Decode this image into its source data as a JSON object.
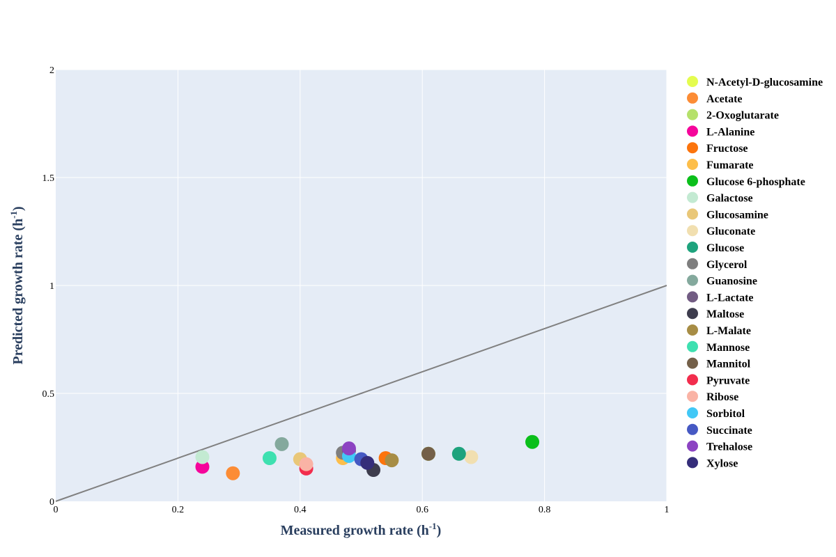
{
  "chart_data": {
    "type": "scatter",
    "xlabel": "Measured growth rate (h",
    "xlabel_sup": "-1",
    "xlabel_end": ")",
    "ylabel": "Predicted growth rate (h",
    "ylabel_sup": "-1",
    "ylabel_end": ")",
    "xlim": [
      0,
      1
    ],
    "ylim": [
      0,
      2
    ],
    "xticks": [
      0,
      0.2,
      0.4,
      0.6,
      0.8,
      1
    ],
    "yticks": [
      0,
      0.5,
      1,
      1.5,
      2
    ],
    "grid": true,
    "legend_position": "right",
    "reference_line": {
      "x": [
        0,
        1
      ],
      "y": [
        0,
        1
      ],
      "color": "#808080"
    },
    "series": [
      {
        "name": "N-Acetyl-D-glucosamine",
        "color": "#e4fc4f",
        "x": 0.61,
        "y": 0.22
      },
      {
        "name": "Acetate",
        "color": "#fc8c35",
        "x": 0.29,
        "y": 0.13
      },
      {
        "name": "2-Oxoglutarate",
        "color": "#b5e16b",
        "x": 0.61,
        "y": 0.22
      },
      {
        "name": "L-Alanine",
        "color": "#f5059b",
        "x": 0.24,
        "y": 0.16
      },
      {
        "name": "Fructose",
        "color": "#fc740c",
        "x": 0.54,
        "y": 0.2
      },
      {
        "name": "Fumarate",
        "color": "#fdbe4a",
        "x": 0.47,
        "y": 0.2
      },
      {
        "name": "Glucose 6-phosphate",
        "color": "#0bbf1b",
        "x": 0.78,
        "y": 0.275
      },
      {
        "name": "Galactose",
        "color": "#c3ead2",
        "x": 0.24,
        "y": 0.205
      },
      {
        "name": "Glucosamine",
        "color": "#e9c778",
        "x": 0.4,
        "y": 0.195
      },
      {
        "name": "Gluconate",
        "color": "#f1dfb0",
        "x": 0.68,
        "y": 0.205
      },
      {
        "name": "Glucose",
        "color": "#1ea37d",
        "x": 0.66,
        "y": 0.22
      },
      {
        "name": "Glycerol",
        "color": "#7e7e7e",
        "x": 0.47,
        "y": 0.225
      },
      {
        "name": "Guanosine",
        "color": "#84a99d",
        "x": 0.37,
        "y": 0.265
      },
      {
        "name": "L-Lactate",
        "color": "#725c83",
        "x": 0.48,
        "y": 0.235
      },
      {
        "name": "Maltose",
        "color": "#3d3c4d",
        "x": 0.52,
        "y": 0.145
      },
      {
        "name": "L-Malate",
        "color": "#a78d45",
        "x": 0.55,
        "y": 0.19
      },
      {
        "name": "Mannose",
        "color": "#3ee0b0",
        "x": 0.35,
        "y": 0.2
      },
      {
        "name": "Mannitol",
        "color": "#746049",
        "x": 0.61,
        "y": 0.22
      },
      {
        "name": "Pyruvate",
        "color": "#f22d4d",
        "x": 0.41,
        "y": 0.152
      },
      {
        "name": "Ribose",
        "color": "#fab3a5",
        "x": 0.41,
        "y": 0.172
      },
      {
        "name": "Sorbitol",
        "color": "#42c8f6",
        "x": 0.48,
        "y": 0.21
      },
      {
        "name": "Succinate",
        "color": "#4659c3",
        "x": 0.5,
        "y": 0.195
      },
      {
        "name": "Trehalose",
        "color": "#8c43c2",
        "x": 0.48,
        "y": 0.245
      },
      {
        "name": "Xylose",
        "color": "#352d7a",
        "x": 0.51,
        "y": 0.178
      }
    ]
  }
}
